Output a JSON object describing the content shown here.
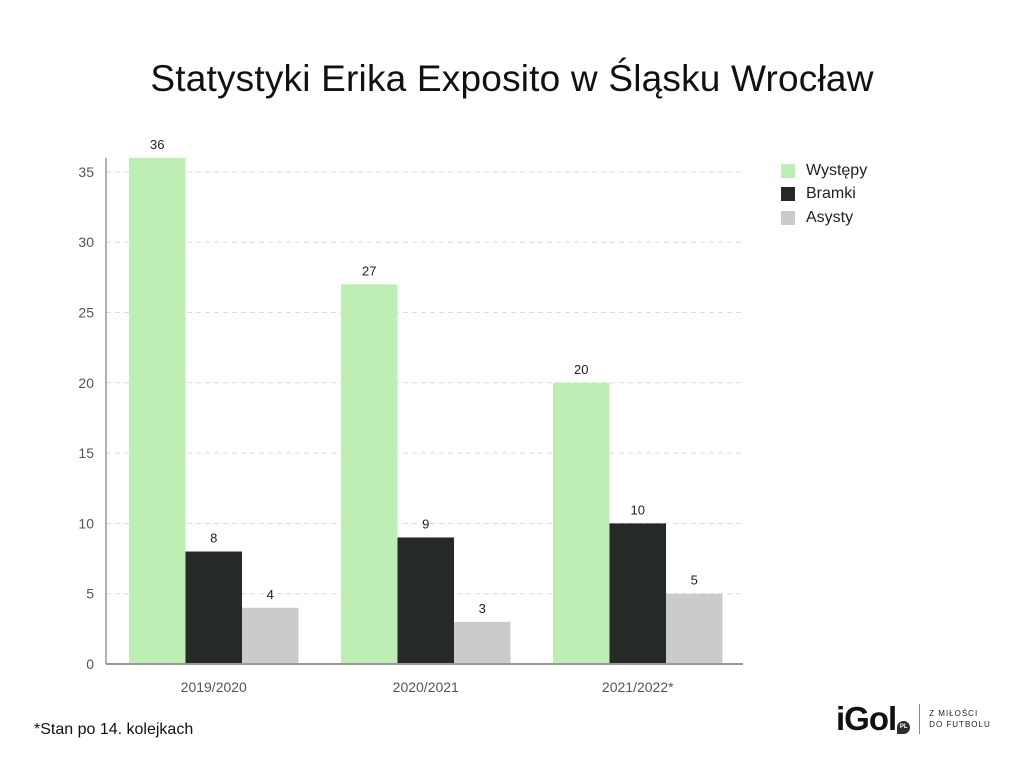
{
  "title": "Statystyki Erika Exposito w Śląsku Wrocław",
  "footnote": "*Stan po 14. kolejkach",
  "brand": {
    "logo": "iGol",
    "logo_badge": "PL",
    "tagline_line1": "Z MIŁOŚCI",
    "tagline_line2": "DO FUTBOLU"
  },
  "colors": {
    "wystepy": "#bdeeb3",
    "bramki": "#262a26",
    "asysty": "#cbcbcb",
    "grid": "#dcdcdc",
    "axis": "#999999",
    "tick_text": "#555555"
  },
  "chart_data": {
    "type": "bar",
    "title": "Statystyki Erika Exposito w Śląsku Wrocław",
    "xlabel": "",
    "ylabel": "",
    "categories": [
      "2019/2020",
      "2020/2021",
      "2021/2022*"
    ],
    "series": [
      {
        "name": "Występy",
        "values": [
          36,
          27,
          20
        ]
      },
      {
        "name": "Bramki",
        "values": [
          8,
          9,
          10
        ]
      },
      {
        "name": "Asysty",
        "values": [
          4,
          3,
          5
        ]
      }
    ],
    "ylim": [
      0,
      36
    ],
    "yticks": [
      0,
      5,
      10,
      15,
      20,
      25,
      30,
      35
    ],
    "grid": true,
    "legend_position": "top-right",
    "data_labels": true
  }
}
